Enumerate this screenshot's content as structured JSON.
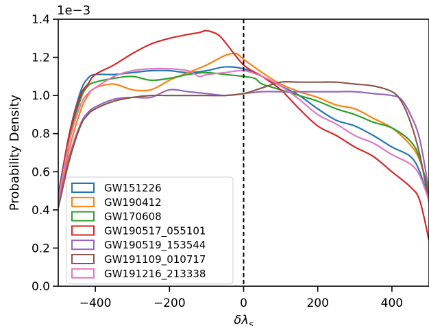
{
  "chart_data": {
    "type": "line",
    "title": "",
    "xlabel": "δλ_s",
    "ylabel": "Probability Density",
    "y_offset_text": "1e−3",
    "xlim": [
      -500,
      500
    ],
    "ylim": [
      0,
      1.4
    ],
    "y_scale_factor": 0.001,
    "xticks": [
      -400,
      -200,
      0,
      200,
      400
    ],
    "xtick_labels": [
      "−400",
      "−200",
      "0",
      "200",
      "400"
    ],
    "yticks": [
      0.0,
      0.2,
      0.4,
      0.6,
      0.8,
      1.0,
      1.2,
      1.4
    ],
    "ytick_labels": [
      "0.0",
      "0.2",
      "0.4",
      "0.6",
      "0.8",
      "1.0",
      "1.2",
      "1.4"
    ],
    "grid": false,
    "legend_position": "lower-left",
    "vline": {
      "x": 0,
      "style": "dashed",
      "color": "#000000"
    },
    "series": [
      {
        "name": "GW151226",
        "color": "#1f77b4",
        "points": [
          [
            -500,
            0.48
          ],
          [
            -470,
            0.8
          ],
          [
            -440,
            1.02
          ],
          [
            -420,
            1.09
          ],
          [
            -400,
            1.11
          ],
          [
            -350,
            1.11
          ],
          [
            -300,
            1.12
          ],
          [
            -250,
            1.13
          ],
          [
            -200,
            1.13
          ],
          [
            -150,
            1.12
          ],
          [
            -100,
            1.13
          ],
          [
            -50,
            1.15
          ],
          [
            0,
            1.14
          ],
          [
            50,
            1.1
          ],
          [
            100,
            1.05
          ],
          [
            150,
            1.0
          ],
          [
            200,
            0.93
          ],
          [
            250,
            0.87
          ],
          [
            300,
            0.84
          ],
          [
            350,
            0.79
          ],
          [
            400,
            0.73
          ],
          [
            450,
            0.68
          ],
          [
            475,
            0.6
          ],
          [
            500,
            0.45
          ]
        ]
      },
      {
        "name": "GW190412",
        "color": "#ff7f0e",
        "points": [
          [
            -500,
            0.43
          ],
          [
            -470,
            0.72
          ],
          [
            -440,
            0.92
          ],
          [
            -420,
            1.0
          ],
          [
            -400,
            1.04
          ],
          [
            -350,
            1.06
          ],
          [
            -300,
            1.03
          ],
          [
            -250,
            1.03
          ],
          [
            -200,
            1.08
          ],
          [
            -150,
            1.12
          ],
          [
            -100,
            1.16
          ],
          [
            -50,
            1.21
          ],
          [
            -20,
            1.22
          ],
          [
            0,
            1.19
          ],
          [
            50,
            1.12
          ],
          [
            100,
            1.06
          ],
          [
            150,
            1.02
          ],
          [
            200,
            0.99
          ],
          [
            250,
            0.95
          ],
          [
            300,
            0.93
          ],
          [
            350,
            0.88
          ],
          [
            400,
            0.83
          ],
          [
            450,
            0.74
          ],
          [
            475,
            0.66
          ],
          [
            500,
            0.5
          ]
        ]
      },
      {
        "name": "GW170608",
        "color": "#2ca02c",
        "points": [
          [
            -500,
            0.46
          ],
          [
            -470,
            0.78
          ],
          [
            -440,
            0.98
          ],
          [
            -420,
            1.05
          ],
          [
            -400,
            1.07
          ],
          [
            -350,
            1.09
          ],
          [
            -300,
            1.1
          ],
          [
            -250,
            1.08
          ],
          [
            -200,
            1.09
          ],
          [
            -150,
            1.11
          ],
          [
            -100,
            1.12
          ],
          [
            -50,
            1.11
          ],
          [
            0,
            1.1
          ],
          [
            30,
            1.09
          ],
          [
            50,
            1.06
          ],
          [
            100,
            1.03
          ],
          [
            150,
            1.0
          ],
          [
            200,
            0.97
          ],
          [
            250,
            0.93
          ],
          [
            300,
            0.9
          ],
          [
            350,
            0.86
          ],
          [
            400,
            0.83
          ],
          [
            450,
            0.76
          ],
          [
            475,
            0.67
          ],
          [
            500,
            0.48
          ]
        ]
      },
      {
        "name": "GW190517_055101",
        "color": "#d62728",
        "points": [
          [
            -500,
            0.46
          ],
          [
            -470,
            0.8
          ],
          [
            -440,
            1.0
          ],
          [
            -420,
            1.06
          ],
          [
            -400,
            1.11
          ],
          [
            -350,
            1.16
          ],
          [
            -300,
            1.22
          ],
          [
            -250,
            1.27
          ],
          [
            -200,
            1.3
          ],
          [
            -150,
            1.32
          ],
          [
            -120,
            1.33
          ],
          [
            -100,
            1.34
          ],
          [
            -70,
            1.32
          ],
          [
            -50,
            1.28
          ],
          [
            0,
            1.16
          ],
          [
            50,
            1.1
          ],
          [
            100,
            1.03
          ],
          [
            150,
            0.93
          ],
          [
            200,
            0.84
          ],
          [
            250,
            0.79
          ],
          [
            300,
            0.73
          ],
          [
            350,
            0.68
          ],
          [
            400,
            0.6
          ],
          [
            450,
            0.52
          ],
          [
            475,
            0.45
          ],
          [
            500,
            0.24
          ]
        ]
      },
      {
        "name": "GW190519_153544",
        "color": "#9467bd",
        "points": [
          [
            -500,
            0.42
          ],
          [
            -470,
            0.68
          ],
          [
            -440,
            0.85
          ],
          [
            -420,
            0.91
          ],
          [
            -400,
            0.94
          ],
          [
            -350,
            0.98
          ],
          [
            -300,
            0.99
          ],
          [
            -250,
            0.99
          ],
          [
            -200,
            1.03
          ],
          [
            -150,
            1.02
          ],
          [
            -100,
            1.01
          ],
          [
            -50,
            1.0
          ],
          [
            0,
            1.01
          ],
          [
            50,
            1.02
          ],
          [
            100,
            1.02
          ],
          [
            150,
            1.02
          ],
          [
            200,
            1.02
          ],
          [
            250,
            1.02
          ],
          [
            300,
            1.02
          ],
          [
            350,
            1.01
          ],
          [
            400,
            1.0
          ],
          [
            425,
            0.98
          ],
          [
            450,
            0.9
          ],
          [
            475,
            0.77
          ],
          [
            500,
            0.5
          ]
        ]
      },
      {
        "name": "GW191109_010717",
        "color": "#8c564b",
        "points": [
          [
            -500,
            0.41
          ],
          [
            -470,
            0.66
          ],
          [
            -440,
            0.84
          ],
          [
            -420,
            0.9
          ],
          [
            -400,
            0.93
          ],
          [
            -350,
            0.97
          ],
          [
            -300,
            0.99
          ],
          [
            -250,
            1.0
          ],
          [
            -200,
            1.0
          ],
          [
            -150,
            1.0
          ],
          [
            -100,
            1.0
          ],
          [
            -50,
            1.0
          ],
          [
            0,
            1.01
          ],
          [
            50,
            1.04
          ],
          [
            100,
            1.07
          ],
          [
            150,
            1.07
          ],
          [
            200,
            1.07
          ],
          [
            250,
            1.07
          ],
          [
            300,
            1.06
          ],
          [
            350,
            1.05
          ],
          [
            400,
            1.02
          ],
          [
            425,
            0.97
          ],
          [
            450,
            0.86
          ],
          [
            475,
            0.69
          ],
          [
            500,
            0.44
          ]
        ]
      },
      {
        "name": "GW191216_213338",
        "color": "#e377c2",
        "points": [
          [
            -500,
            0.45
          ],
          [
            -470,
            0.76
          ],
          [
            -440,
            0.95
          ],
          [
            -420,
            1.01
          ],
          [
            -400,
            1.04
          ],
          [
            -350,
            1.1
          ],
          [
            -300,
            1.13
          ],
          [
            -250,
            1.14
          ],
          [
            -200,
            1.14
          ],
          [
            -150,
            1.13
          ],
          [
            -120,
            1.1
          ],
          [
            -100,
            1.11
          ],
          [
            -50,
            1.12
          ],
          [
            0,
            1.13
          ],
          [
            50,
            1.1
          ],
          [
            100,
            1.05
          ],
          [
            150,
            0.98
          ],
          [
            200,
            0.9
          ],
          [
            250,
            0.85
          ],
          [
            300,
            0.79
          ],
          [
            350,
            0.75
          ],
          [
            400,
            0.69
          ],
          [
            450,
            0.64
          ],
          [
            475,
            0.58
          ],
          [
            500,
            0.45
          ]
        ]
      }
    ]
  }
}
